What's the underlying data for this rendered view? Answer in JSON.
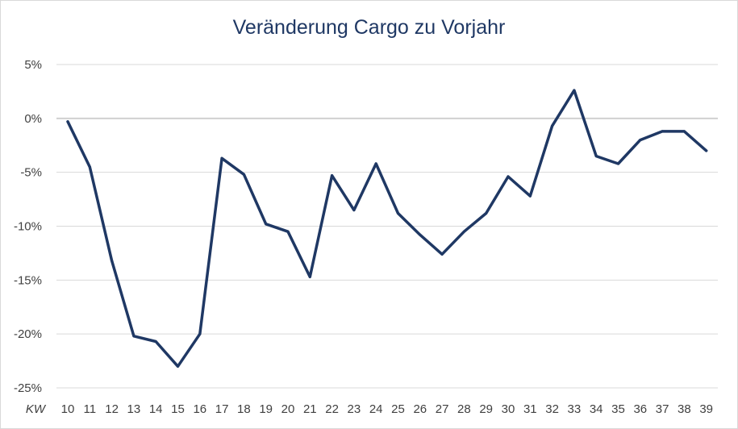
{
  "chart_data": {
    "type": "line",
    "title": "Veränderung Cargo zu Vorjahr",
    "x_axis_unit_label": "KW",
    "categories": [
      "10",
      "11",
      "12",
      "13",
      "14",
      "15",
      "16",
      "17",
      "18",
      "19",
      "20",
      "21",
      "22",
      "23",
      "24",
      "25",
      "26",
      "27",
      "28",
      "29",
      "30",
      "31",
      "32",
      "33",
      "34",
      "35",
      "36",
      "37",
      "38",
      "39"
    ],
    "series": [
      {
        "values": [
          -0.3,
          -4.5,
          -13.2,
          -20.2,
          -20.7,
          -23.0,
          -20.0,
          -3.7,
          -5.2,
          -9.8,
          -10.5,
          -14.7,
          -5.3,
          -8.5,
          -4.2,
          -8.8,
          -10.8,
          -12.6,
          -10.5,
          -8.8,
          -5.4,
          -7.2,
          -0.7,
          2.6,
          -3.5,
          -4.2,
          -2.0,
          -1.2,
          -1.2,
          -3.0
        ],
        "color": "#1f3864"
      }
    ],
    "ylim": [
      -25,
      5
    ],
    "y_ticks": [
      5,
      0,
      -5,
      -10,
      -15,
      -20,
      -25
    ],
    "y_tick_labels": [
      "5%",
      "0%",
      "-5%",
      "-10%",
      "-15%",
      "-20%",
      "-25%"
    ],
    "grid": true,
    "legend": "none"
  }
}
